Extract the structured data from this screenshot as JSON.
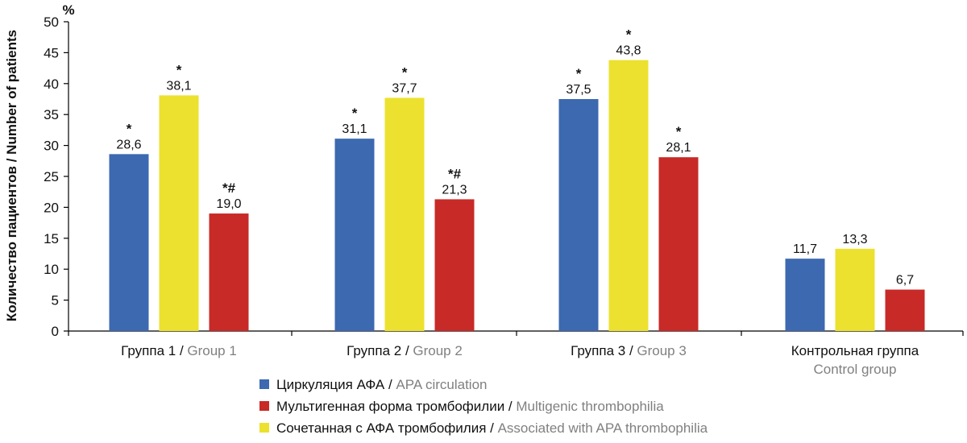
{
  "chart_data": {
    "type": "bar",
    "y_unit": "%",
    "ylabel": "Количество пациентов / Number of patients",
    "ylim": [
      0,
      50
    ],
    "yticks": [
      0,
      5,
      10,
      15,
      20,
      25,
      30,
      35,
      40,
      45,
      50
    ],
    "grid": false,
    "legend_placement": "bottom-center",
    "categories": [
      {
        "ru": "Группа 1",
        "sep": " / ",
        "en": "Group 1"
      },
      {
        "ru": "Группа 2",
        "sep": " / ",
        "en": "Group 2"
      },
      {
        "ru": "Группа 3",
        "sep": " / ",
        "en": "Group 3"
      },
      {
        "ru": "Контрольная группа",
        "sep": "",
        "en": "Control group"
      }
    ],
    "series": [
      {
        "name_ru": "Циркуляция АФА",
        "sep": " / ",
        "name_en": "APA circulation",
        "color": "#3C69B0",
        "values": [
          28.6,
          31.1,
          37.5,
          11.7
        ],
        "value_labels": [
          "28,6",
          "31,1",
          "37,5",
          "11,7"
        ],
        "marks": [
          "*",
          "*",
          "*",
          ""
        ]
      },
      {
        "name_ru": "Сочетанная с АФА тромбофилия",
        "sep": " / ",
        "name_en": "Associated with APA thrombophilia",
        "color": "#ECE12E",
        "values": [
          38.1,
          37.7,
          43.8,
          13.3
        ],
        "value_labels": [
          "38,1",
          "37,7",
          "43,8",
          "13,3"
        ],
        "marks": [
          "*",
          "*",
          "*",
          ""
        ]
      },
      {
        "name_ru": "Мультигенная форма тромбофилии",
        "sep": " / ",
        "name_en": "Multigenic thrombophilia",
        "color": "#C82A27",
        "values": [
          19.0,
          21.3,
          28.1,
          6.7
        ],
        "value_labels": [
          "19,0",
          "21,3",
          "28,1",
          "6,7"
        ],
        "marks": [
          "*#",
          "*#",
          "*",
          ""
        ]
      }
    ],
    "legend_order": [
      0,
      2,
      1
    ]
  }
}
